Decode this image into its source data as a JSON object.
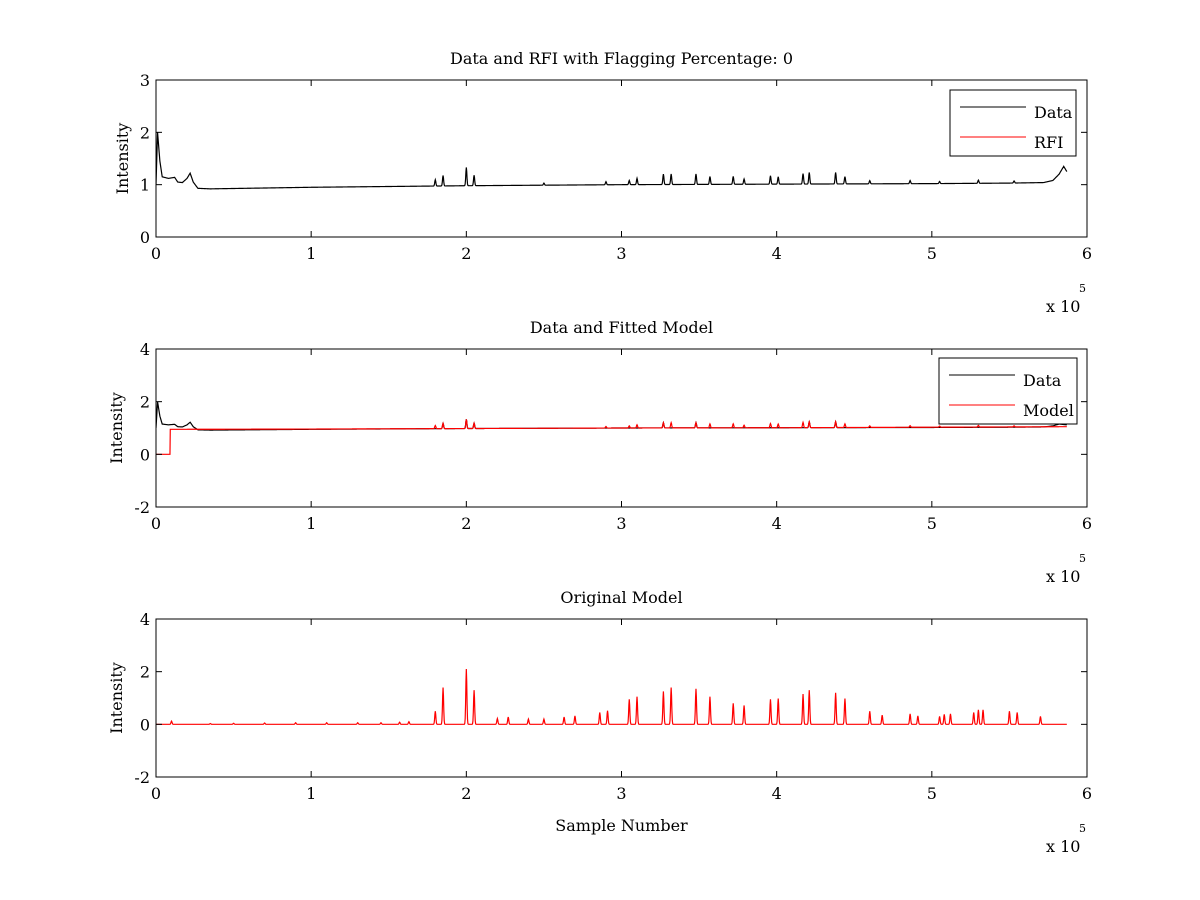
{
  "chart_data": [
    {
      "type": "line",
      "title": "Data and RFI with Flagging Percentage: 0",
      "xlabel": "",
      "ylabel": "Intensity",
      "xlim": [
        0,
        6
      ],
      "ylim": [
        0,
        3
      ],
      "xticks": [
        "0",
        "1",
        "2",
        "3",
        "4",
        "5",
        "6"
      ],
      "yticks": [
        "0",
        "1",
        "2",
        "3"
      ],
      "x_multiplier": "x 10",
      "x_exponent": "5",
      "legend_position": "top-right",
      "grid": false,
      "series": [
        {
          "name": "Data",
          "color": "#000000",
          "baseline": [
            [
              0,
              1.0
            ],
            [
              0.01,
              2.0
            ],
            [
              0.025,
              1.45
            ],
            [
              0.04,
              1.15
            ],
            [
              0.08,
              1.12
            ],
            [
              0.12,
              1.14
            ],
            [
              0.14,
              1.05
            ],
            [
              0.17,
              1.04
            ],
            [
              0.2,
              1.12
            ],
            [
              0.22,
              1.22
            ],
            [
              0.24,
              1.05
            ],
            [
              0.27,
              0.93
            ],
            [
              0.35,
              0.92
            ],
            [
              1.0,
              0.95
            ],
            [
              2.0,
              0.98
            ],
            [
              3.0,
              1.0
            ],
            [
              4.0,
              1.01
            ],
            [
              5.0,
              1.02
            ],
            [
              5.5,
              1.03
            ],
            [
              5.72,
              1.04
            ],
            [
              5.78,
              1.08
            ],
            [
              5.82,
              1.2
            ],
            [
              5.85,
              1.35
            ],
            [
              5.87,
              1.25
            ]
          ],
          "peaks": [
            [
              1.8,
              0.12
            ],
            [
              1.85,
              0.2
            ],
            [
              2.0,
              0.35
            ],
            [
              2.05,
              0.2
            ],
            [
              2.5,
              0.04
            ],
            [
              2.9,
              0.06
            ],
            [
              3.05,
              0.08
            ],
            [
              3.1,
              0.12
            ],
            [
              3.27,
              0.2
            ],
            [
              3.32,
              0.2
            ],
            [
              3.48,
              0.2
            ],
            [
              3.57,
              0.15
            ],
            [
              3.72,
              0.15
            ],
            [
              3.79,
              0.1
            ],
            [
              3.96,
              0.16
            ],
            [
              4.01,
              0.14
            ],
            [
              4.17,
              0.2
            ],
            [
              4.21,
              0.22
            ],
            [
              4.38,
              0.22
            ],
            [
              4.44,
              0.14
            ],
            [
              4.6,
              0.06
            ],
            [
              4.86,
              0.06
            ],
            [
              5.05,
              0.04
            ],
            [
              5.3,
              0.06
            ],
            [
              5.53,
              0.04
            ]
          ]
        },
        {
          "name": "RFI",
          "color": "#ff0000",
          "baseline": [],
          "peaks": []
        }
      ]
    },
    {
      "type": "line",
      "title": "Data and Fitted Model",
      "xlabel": "",
      "ylabel": "Intensity",
      "xlim": [
        0,
        6
      ],
      "ylim": [
        -2,
        4
      ],
      "xticks": [
        "0",
        "1",
        "2",
        "3",
        "4",
        "5",
        "6"
      ],
      "yticks": [
        "-2",
        "0",
        "2",
        "4"
      ],
      "x_multiplier": "x 10",
      "x_exponent": "5",
      "legend_position": "top-right",
      "grid": false,
      "series": [
        {
          "name": "Data",
          "color": "#000000",
          "baseline": [
            [
              0,
              1.0
            ],
            [
              0.01,
              2.0
            ],
            [
              0.025,
              1.45
            ],
            [
              0.04,
              1.15
            ],
            [
              0.08,
              1.12
            ],
            [
              0.12,
              1.14
            ],
            [
              0.14,
              1.05
            ],
            [
              0.17,
              1.04
            ],
            [
              0.2,
              1.12
            ],
            [
              0.22,
              1.22
            ],
            [
              0.24,
              1.05
            ],
            [
              0.27,
              0.93
            ],
            [
              0.35,
              0.92
            ],
            [
              1.0,
              0.95
            ],
            [
              2.0,
              0.98
            ],
            [
              3.0,
              1.0
            ],
            [
              4.0,
              1.01
            ],
            [
              5.0,
              1.02
            ],
            [
              5.5,
              1.03
            ],
            [
              5.72,
              1.04
            ],
            [
              5.78,
              1.08
            ],
            [
              5.82,
              1.15
            ],
            [
              5.87,
              1.12
            ]
          ],
          "peaks": [
            [
              1.85,
              0.2
            ],
            [
              2.0,
              0.35
            ],
            [
              2.05,
              0.2
            ],
            [
              3.27,
              0.2
            ],
            [
              3.48,
              0.2
            ],
            [
              4.21,
              0.22
            ],
            [
              4.38,
              0.22
            ]
          ]
        },
        {
          "name": "Model",
          "color": "#ff0000",
          "baseline": [
            [
              0,
              0.0
            ],
            [
              0.09,
              0.0
            ],
            [
              0.092,
              0.95
            ],
            [
              1.0,
              0.96
            ],
            [
              2.0,
              0.98
            ],
            [
              3.0,
              1.0
            ],
            [
              4.0,
              1.01
            ],
            [
              5.0,
              1.03
            ],
            [
              5.87,
              1.05
            ]
          ],
          "peaks": [
            [
              1.8,
              0.12
            ],
            [
              1.85,
              0.2
            ],
            [
              2.0,
              0.35
            ],
            [
              2.05,
              0.2
            ],
            [
              2.9,
              0.06
            ],
            [
              3.05,
              0.08
            ],
            [
              3.1,
              0.12
            ],
            [
              3.27,
              0.2
            ],
            [
              3.32,
              0.2
            ],
            [
              3.48,
              0.2
            ],
            [
              3.57,
              0.15
            ],
            [
              3.72,
              0.15
            ],
            [
              3.79,
              0.1
            ],
            [
              3.96,
              0.16
            ],
            [
              4.01,
              0.14
            ],
            [
              4.17,
              0.2
            ],
            [
              4.21,
              0.22
            ],
            [
              4.38,
              0.22
            ],
            [
              4.44,
              0.14
            ],
            [
              4.6,
              0.06
            ],
            [
              4.86,
              0.06
            ],
            [
              5.05,
              0.04
            ],
            [
              5.3,
              0.06
            ],
            [
              5.53,
              0.04
            ]
          ]
        }
      ]
    },
    {
      "type": "line",
      "title": "Original Model",
      "xlabel": "Sample Number",
      "ylabel": "Intensity",
      "xlim": [
        0,
        6
      ],
      "ylim": [
        -2,
        4
      ],
      "xticks": [
        "0",
        "1",
        "2",
        "3",
        "4",
        "5",
        "6"
      ],
      "yticks": [
        "-2",
        "0",
        "2",
        "4"
      ],
      "x_multiplier": "x 10",
      "x_exponent": "5",
      "grid": false,
      "series": [
        {
          "color": "#ff0000",
          "baseline": [
            [
              0,
              0.0
            ],
            [
              5.87,
              0.0
            ]
          ],
          "peaks": [
            [
              0.1,
              0.12
            ],
            [
              0.35,
              0.03
            ],
            [
              0.5,
              0.04
            ],
            [
              0.7,
              0.05
            ],
            [
              0.9,
              0.06
            ],
            [
              1.1,
              0.06
            ],
            [
              1.3,
              0.06
            ],
            [
              1.45,
              0.06
            ],
            [
              1.57,
              0.08
            ],
            [
              1.63,
              0.1
            ],
            [
              1.8,
              0.5
            ],
            [
              1.85,
              1.4
            ],
            [
              2.0,
              2.1
            ],
            [
              2.05,
              1.3
            ],
            [
              2.2,
              0.22
            ],
            [
              2.27,
              0.28
            ],
            [
              2.4,
              0.2
            ],
            [
              2.5,
              0.2
            ],
            [
              2.63,
              0.28
            ],
            [
              2.7,
              0.32
            ],
            [
              2.86,
              0.45
            ],
            [
              2.91,
              0.52
            ],
            [
              3.05,
              0.95
            ],
            [
              3.1,
              1.05
            ],
            [
              3.27,
              1.25
            ],
            [
              3.32,
              1.4
            ],
            [
              3.48,
              1.35
            ],
            [
              3.57,
              1.05
            ],
            [
              3.72,
              0.8
            ],
            [
              3.79,
              0.72
            ],
            [
              3.96,
              0.95
            ],
            [
              4.01,
              0.98
            ],
            [
              4.17,
              1.15
            ],
            [
              4.21,
              1.3
            ],
            [
              4.38,
              1.2
            ],
            [
              4.44,
              0.98
            ],
            [
              4.6,
              0.5
            ],
            [
              4.68,
              0.35
            ],
            [
              4.86,
              0.4
            ],
            [
              4.91,
              0.32
            ],
            [
              5.05,
              0.3
            ],
            [
              5.08,
              0.38
            ],
            [
              5.12,
              0.4
            ],
            [
              5.27,
              0.45
            ],
            [
              5.3,
              0.55
            ],
            [
              5.33,
              0.55
            ],
            [
              5.5,
              0.5
            ],
            [
              5.55,
              0.45
            ],
            [
              5.7,
              0.3
            ]
          ]
        }
      ]
    }
  ]
}
